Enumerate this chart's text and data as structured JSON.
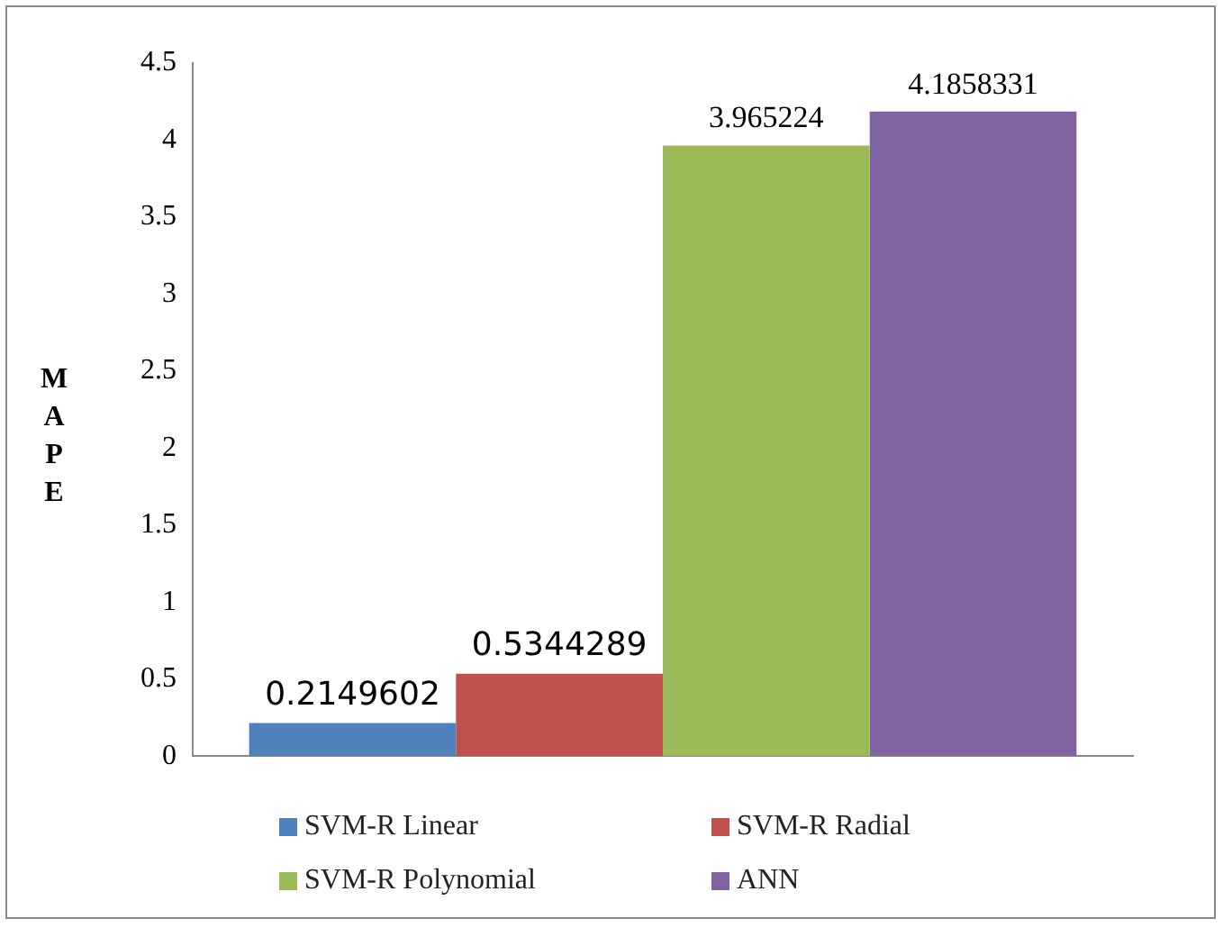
{
  "chart_data": {
    "type": "bar",
    "ylabel": "MAPE",
    "categories": [
      null
    ],
    "series": [
      {
        "name": "SVM-R Linear",
        "color": "#4f81bd",
        "values": [
          0.2149602
        ]
      },
      {
        "name": "SVM-R Radial",
        "color": "#c0504d",
        "values": [
          0.5344289
        ]
      },
      {
        "name": "SVM-R Polynomial",
        "color": "#9bbb59",
        "values": [
          3.965224
        ]
      },
      {
        "name": "ANN",
        "color": "#8064a2",
        "values": [
          4.1858331
        ]
      }
    ],
    "ylim": [
      0,
      4.5
    ],
    "yticks": [
      0,
      0.5,
      1,
      1.5,
      2,
      2.5,
      3,
      3.5,
      4,
      4.5
    ],
    "grid": false,
    "legend": "bottom",
    "data_labels": true
  }
}
